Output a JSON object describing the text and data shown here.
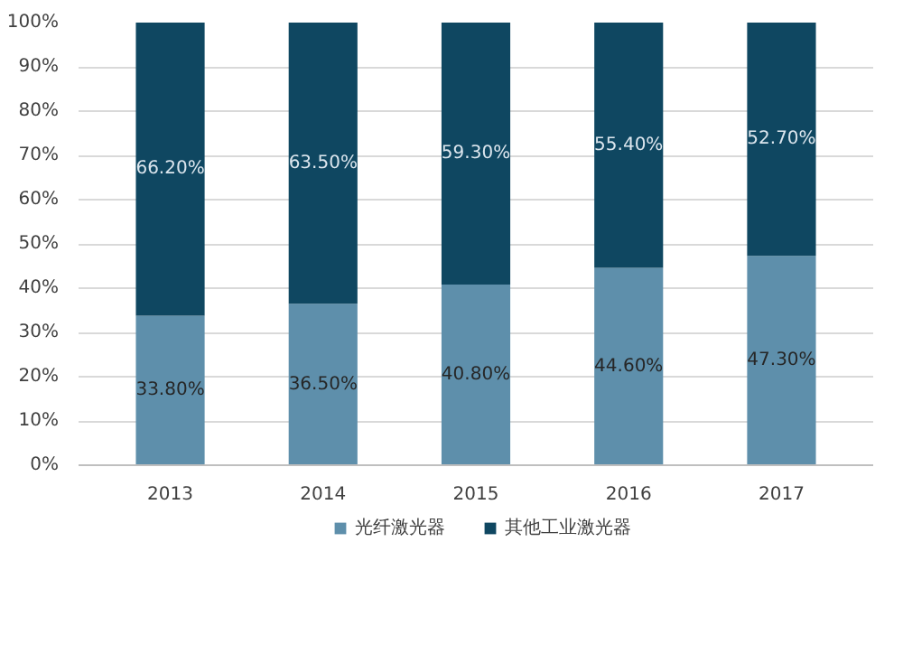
{
  "chart_data": {
    "type": "bar",
    "stacked": true,
    "categories": [
      "2013",
      "2014",
      "2015",
      "2016",
      "2017"
    ],
    "series": [
      {
        "name": "光纤激光器",
        "color": "#5e8fab",
        "values": [
          33.8,
          36.5,
          40.8,
          44.6,
          47.3
        ],
        "value_labels": [
          "33.80%",
          "36.50%",
          "40.80%",
          "44.60%",
          "47.30%"
        ]
      },
      {
        "name": "其他工业激光器",
        "color": "#0f4761",
        "values": [
          66.2,
          63.5,
          59.3,
          55.4,
          52.7
        ],
        "value_labels": [
          "66.20%",
          "63.50%",
          "59.30%",
          "55.40%",
          "52.70%"
        ]
      }
    ],
    "ylim": [
      0,
      100
    ],
    "yticks": [
      {
        "value": 0,
        "label": "0%"
      },
      {
        "value": 10,
        "label": "10%"
      },
      {
        "value": 20,
        "label": "20%"
      },
      {
        "value": 30,
        "label": "30%"
      },
      {
        "value": 40,
        "label": "40%"
      },
      {
        "value": 50,
        "label": "50%"
      },
      {
        "value": 60,
        "label": "60%"
      },
      {
        "value": 70,
        "label": "70%"
      },
      {
        "value": 80,
        "label": "80%"
      },
      {
        "value": 90,
        "label": "90%"
      },
      {
        "value": 100,
        "label": "100%"
      }
    ],
    "grid": "y",
    "legend": "bottom"
  }
}
